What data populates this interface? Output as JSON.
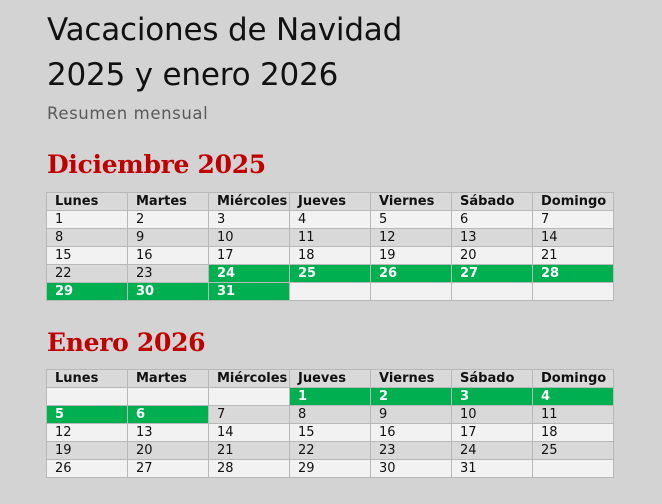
{
  "header": {
    "title_line1": "Vacaciones de Navidad",
    "title_line2": "2025 y enero 2026",
    "subtitle": "Resumen mensual"
  },
  "colors": {
    "background": "#d3d3d3",
    "month_title": "#c00000",
    "highlight": "#00b050",
    "row_light": "#f2f2f2",
    "row_dark": "#d9d9d9"
  },
  "weekdays": [
    "Lunes",
    "Martes",
    "Miércoles",
    "Jueves",
    "Viernes",
    "Sábado",
    "Domingo"
  ],
  "months": [
    {
      "title": "Diciembre 2025",
      "weeks": [
        [
          "1",
          "2",
          "3",
          "4",
          "5",
          "6",
          "7"
        ],
        [
          "8",
          "9",
          "10",
          "11",
          "12",
          "13",
          "14"
        ],
        [
          "15",
          "16",
          "17",
          "18",
          "19",
          "20",
          "21"
        ],
        [
          "22",
          "23",
          "24",
          "25",
          "26",
          "27",
          "28"
        ],
        [
          "29",
          "30",
          "31",
          "",
          "",
          "",
          ""
        ]
      ],
      "vacation_days": [
        "24",
        "25",
        "26",
        "27",
        "28",
        "29",
        "30",
        "31"
      ]
    },
    {
      "title": "Enero 2026",
      "weeks": [
        [
          "",
          "",
          "",
          "1",
          "2",
          "3",
          "4"
        ],
        [
          "5",
          "6",
          "7",
          "8",
          "9",
          "10",
          "11"
        ],
        [
          "12",
          "13",
          "14",
          "15",
          "16",
          "17",
          "18"
        ],
        [
          "19",
          "20",
          "21",
          "22",
          "23",
          "24",
          "25"
        ],
        [
          "26",
          "27",
          "28",
          "29",
          "30",
          "31",
          ""
        ]
      ],
      "vacation_days": [
        "1",
        "2",
        "3",
        "4",
        "5",
        "6"
      ]
    }
  ]
}
